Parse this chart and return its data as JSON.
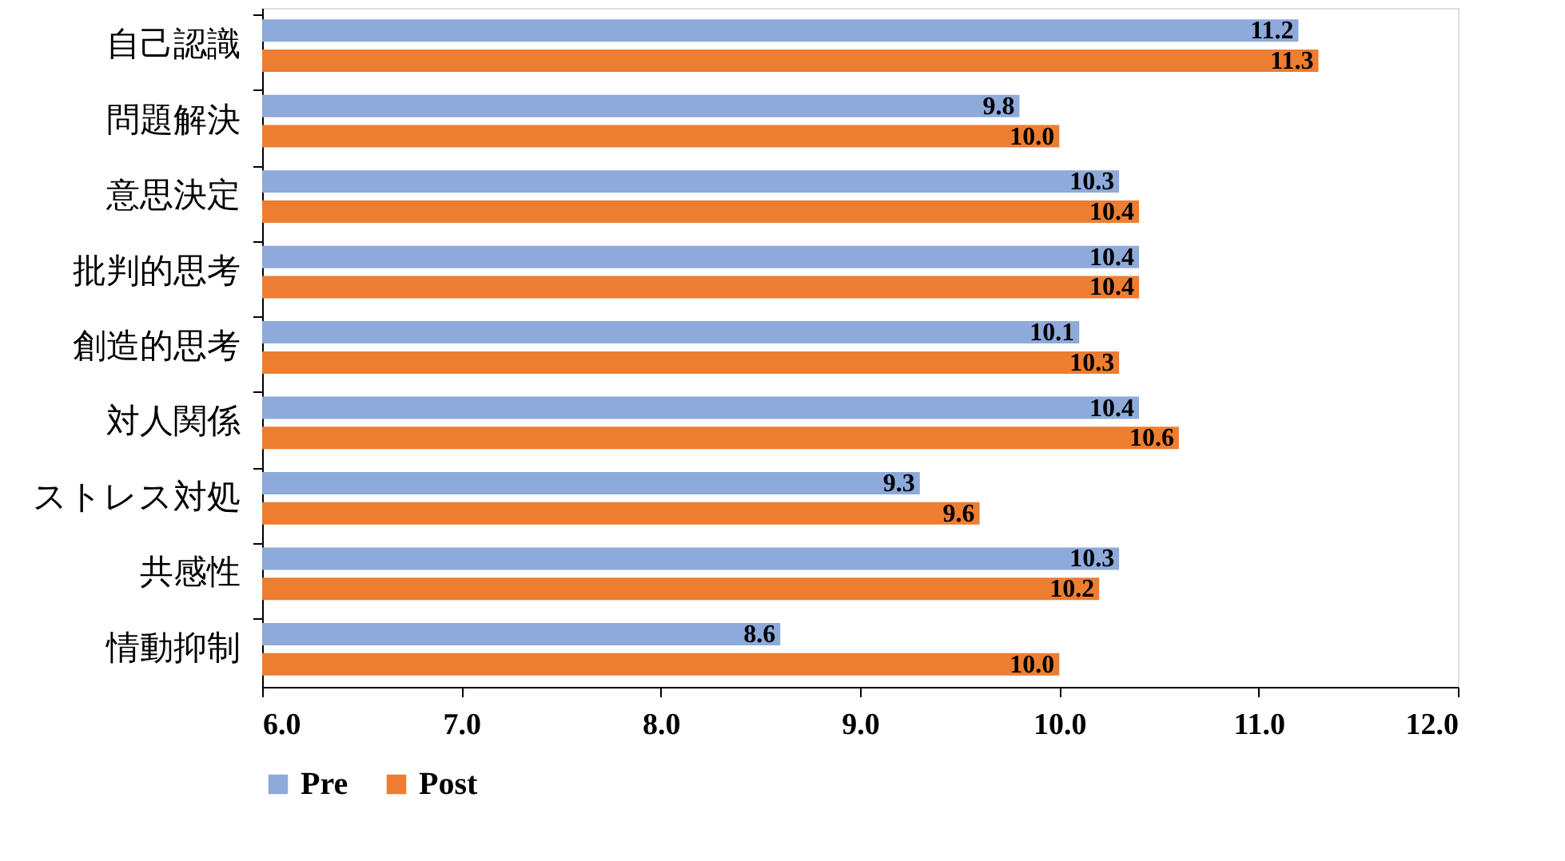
{
  "chart_data": {
    "type": "bar",
    "orientation": "horizontal",
    "categories": [
      "自己認識",
      "問題解決",
      "意思決定",
      "批判的思考",
      "創造的思考",
      "対人関係",
      "ストレス対処",
      "共感性",
      "情動抑制"
    ],
    "series": [
      {
        "name": "Pre",
        "color": "#8eaadb",
        "values": [
          11.2,
          9.8,
          10.3,
          10.4,
          10.1,
          10.4,
          9.3,
          10.3,
          8.6
        ],
        "value_labels": [
          "11.2",
          "9.8",
          "10.3",
          "10.4",
          "10.1",
          "10.4",
          "9.3",
          "10.3",
          "8.6"
        ]
      },
      {
        "name": "Post",
        "color": "#ed7d31",
        "values": [
          11.3,
          10.0,
          10.4,
          10.4,
          10.3,
          10.6,
          9.6,
          10.2,
          10.0
        ],
        "value_labels": [
          "11.3",
          "10.0",
          "10.4",
          "10.4",
          "10.3",
          "10.6",
          "9.6",
          "10.2",
          "10.0"
        ]
      }
    ],
    "xlim": [
      6,
      12
    ],
    "xticks": [
      {
        "value": 6,
        "label": "6.0"
      },
      {
        "value": 7,
        "label": "7.0"
      },
      {
        "value": 8,
        "label": "8.0"
      },
      {
        "value": 9,
        "label": "9.0"
      },
      {
        "value": 10,
        "label": "10.0"
      },
      {
        "value": 11,
        "label": "11.0"
      },
      {
        "value": 12,
        "label": "12.0"
      }
    ],
    "grid": false,
    "legend": "bottom"
  }
}
